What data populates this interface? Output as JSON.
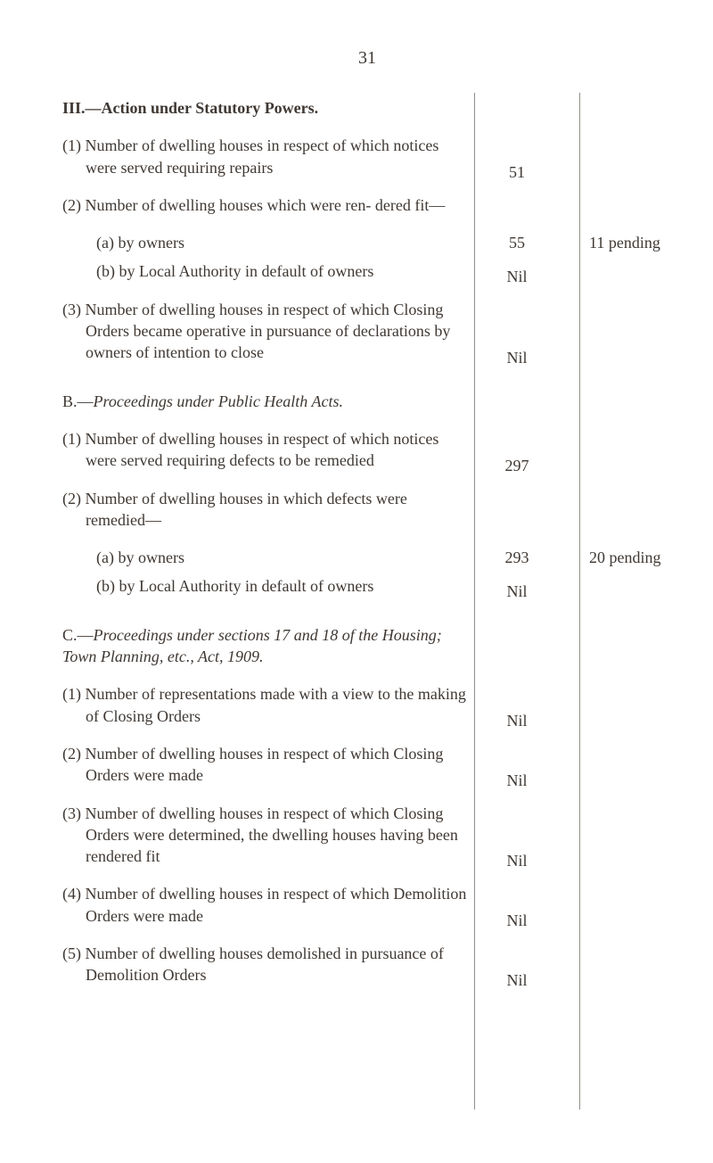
{
  "page_number": "31",
  "section_head": "III.—Action under Statutory Powers.",
  "III_1": "(1) Number of dwelling houses in respect of which notices were served requiring repairs",
  "III_1_val": "51",
  "III_2": "(2) Number of dwelling houses which were ren- dered fit—",
  "III_2_a": "(a)  by owners",
  "III_2_a_val": "55",
  "III_2_a_ann": "11  pending",
  "III_2_b": "(b)  by Local Authority in default of owners",
  "III_2_b_val": "Nil",
  "III_3": "(3) Number of dwelling houses in respect of which Closing Orders became operative in pursuance of declarations by owners of intention to close",
  "III_3_val": "Nil",
  "B_head_prefix": "B.—",
  "B_head_italic": "Proceedings under Public Health Acts.",
  "B_1": "(1) Number of dwelling houses in respect of which notices were served requiring defects to be remedied",
  "B_1_val": "297",
  "B_2": "(2) Number of dwelling houses in which defects were remedied—",
  "B_2_a": "(a)  by owners",
  "B_2_a_val": "293",
  "B_2_a_ann": "20  pending",
  "B_2_b": "(b)  by Local Authority in default of owners",
  "B_2_b_val": "Nil",
  "C_head_prefix": "C.—",
  "C_head_italic": "Proceedings under sections 17 and 18 of the Housing; Town Planning, etc., Act, 1909.",
  "C_1": "(1) Number of representations made with a view to the making of Closing Orders",
  "C_1_val": "Nil",
  "C_2": "(2) Number of dwelling houses in respect of which Closing Orders were made",
  "C_2_val": "Nil",
  "C_3": "(3) Number of dwelling houses in respect of which Closing Orders were determined, the dwelling houses having been rendered fit",
  "C_3_val": "Nil",
  "C_4": "(4) Number of dwelling houses in respect of which Demolition Orders were made",
  "C_4_val": "Nil",
  "C_5": "(5) Number of dwelling houses demolished in pursuance of Demolition Orders",
  "C_5_val": "Nil"
}
